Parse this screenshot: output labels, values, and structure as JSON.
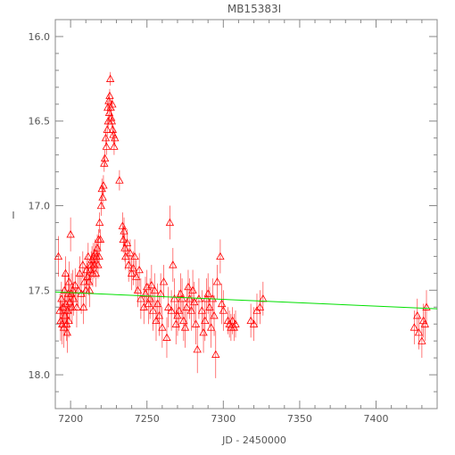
{
  "chart_data": {
    "type": "scatter",
    "title": "MB15383I",
    "xlabel": "JD - 2450000",
    "ylabel": "I",
    "xlim": [
      7190,
      7440
    ],
    "ylim": [
      18.2,
      15.9
    ],
    "y_inverted": true,
    "x_ticks": [
      7200,
      7250,
      7300,
      7350,
      7400
    ],
    "y_ticks": [
      16.0,
      16.5,
      17.0,
      17.5,
      18.0
    ],
    "x_tick_labels": [
      "7200",
      "7250",
      "7300",
      "7350",
      "7400"
    ],
    "y_tick_labels": [
      "16.0",
      "16.5",
      "17.0",
      "17.5",
      "18.0"
    ],
    "grid": false,
    "marker": "open-triangle",
    "series_color": "#ff0000",
    "baseline": {
      "color": "#00e000",
      "x": [
        7190,
        7440
      ],
      "y": [
        17.51,
        17.61
      ]
    },
    "points": [
      [
        7192,
        17.3,
        0.12
      ],
      [
        7193,
        17.62,
        0.1
      ],
      [
        7193.5,
        17.68,
        0.12
      ],
      [
        7194,
        17.55,
        0.1
      ],
      [
        7194.5,
        17.7,
        0.12
      ],
      [
        7195,
        17.6,
        0.1
      ],
      [
        7195.5,
        17.72,
        0.12
      ],
      [
        7196,
        17.5,
        0.1
      ],
      [
        7196.3,
        17.65,
        0.12
      ],
      [
        7196.7,
        17.4,
        0.1
      ],
      [
        7197,
        17.58,
        0.12
      ],
      [
        7197.4,
        17.7,
        0.1
      ],
      [
        7197.8,
        17.75,
        0.12
      ],
      [
        7198,
        17.62,
        0.1
      ],
      [
        7198.4,
        17.52,
        0.12
      ],
      [
        7198.8,
        17.68,
        0.1
      ],
      [
        7199,
        17.45,
        0.12
      ],
      [
        7199.5,
        17.57,
        0.1
      ],
      [
        7200,
        17.17,
        0.1
      ],
      [
        7200.5,
        17.52,
        0.12
      ],
      [
        7201,
        17.6,
        0.1
      ],
      [
        7201.5,
        17.5,
        0.12
      ],
      [
        7202,
        17.55,
        0.1
      ],
      [
        7203,
        17.47,
        0.1
      ],
      [
        7204,
        17.6,
        0.12
      ],
      [
        7205,
        17.5,
        0.1
      ],
      [
        7206,
        17.4,
        0.1
      ],
      [
        7207,
        17.52,
        0.12
      ],
      [
        7208,
        17.35,
        0.08
      ],
      [
        7208.5,
        17.6,
        0.1
      ],
      [
        7209,
        17.45,
        0.08
      ],
      [
        7210,
        17.5,
        0.1
      ],
      [
        7210.5,
        17.38,
        0.08
      ],
      [
        7211,
        17.42,
        0.08
      ],
      [
        7211.5,
        17.3,
        0.08
      ],
      [
        7212,
        17.45,
        0.08
      ],
      [
        7212.5,
        17.5,
        0.1
      ],
      [
        7213,
        17.38,
        0.08
      ],
      [
        7213.5,
        17.35,
        0.08
      ],
      [
        7214,
        17.32,
        0.08
      ],
      [
        7214.5,
        17.4,
        0.08
      ],
      [
        7215,
        17.3,
        0.08
      ],
      [
        7215.5,
        17.35,
        0.08
      ],
      [
        7216,
        17.28,
        0.08
      ],
      [
        7216.5,
        17.4,
        0.08
      ],
      [
        7217,
        17.3,
        0.08
      ],
      [
        7217.5,
        17.25,
        0.08
      ],
      [
        7218,
        17.35,
        0.08
      ],
      [
        7218.3,
        17.2,
        0.06
      ],
      [
        7218.7,
        17.3,
        0.06
      ],
      [
        7219,
        17.1,
        0.06
      ],
      [
        7219.5,
        17.2,
        0.06
      ],
      [
        7220,
        17.0,
        0.06
      ],
      [
        7220.5,
        16.9,
        0.06
      ],
      [
        7221,
        16.95,
        0.06
      ],
      [
        7221.5,
        16.88,
        0.06
      ],
      [
        7222,
        16.75,
        0.05
      ],
      [
        7222.5,
        16.72,
        0.05
      ],
      [
        7223,
        16.6,
        0.05
      ],
      [
        7223.5,
        16.65,
        0.05
      ],
      [
        7224,
        16.55,
        0.05
      ],
      [
        7224.3,
        16.42,
        0.04
      ],
      [
        7224.6,
        16.5,
        0.04
      ],
      [
        7225,
        16.38,
        0.04
      ],
      [
        7225.3,
        16.45,
        0.04
      ],
      [
        7225.6,
        16.35,
        0.04
      ],
      [
        7226,
        16.25,
        0.04
      ],
      [
        7226.3,
        16.42,
        0.04
      ],
      [
        7226.6,
        16.48,
        0.04
      ],
      [
        7227,
        16.5,
        0.04
      ],
      [
        7227.3,
        16.4,
        0.04
      ],
      [
        7227.6,
        16.55,
        0.04
      ],
      [
        7228,
        16.58,
        0.05
      ],
      [
        7228.5,
        16.65,
        0.05
      ],
      [
        7229,
        16.6,
        0.05
      ],
      [
        7232,
        16.85,
        0.06
      ],
      [
        7234,
        17.12,
        0.08
      ],
      [
        7234.5,
        17.2,
        0.08
      ],
      [
        7235,
        17.15,
        0.08
      ],
      [
        7235.5,
        17.25,
        0.08
      ],
      [
        7236,
        17.3,
        0.08
      ],
      [
        7237,
        17.22,
        0.08
      ],
      [
        7238,
        17.35,
        0.1
      ],
      [
        7239,
        17.28,
        0.08
      ],
      [
        7240,
        17.4,
        0.1
      ],
      [
        7241,
        17.37,
        0.1
      ],
      [
        7242,
        17.3,
        0.1
      ],
      [
        7243,
        17.42,
        0.1
      ],
      [
        7244,
        17.5,
        0.1
      ],
      [
        7245,
        17.38,
        0.1
      ],
      [
        7246,
        17.55,
        0.12
      ],
      [
        7248,
        17.6,
        0.1
      ],
      [
        7249,
        17.52,
        0.1
      ],
      [
        7250,
        17.48,
        0.1
      ],
      [
        7251,
        17.58,
        0.12
      ],
      [
        7252,
        17.55,
        0.12
      ],
      [
        7253,
        17.47,
        0.12
      ],
      [
        7254,
        17.62,
        0.12
      ],
      [
        7255,
        17.5,
        0.1
      ],
      [
        7256,
        17.68,
        0.12
      ],
      [
        7257,
        17.58,
        0.12
      ],
      [
        7258,
        17.65,
        0.12
      ],
      [
        7259,
        17.52,
        0.12
      ],
      [
        7260,
        17.72,
        0.12
      ],
      [
        7261,
        17.45,
        0.1
      ],
      [
        7263,
        17.78,
        0.12
      ],
      [
        7264,
        17.6,
        0.12
      ],
      [
        7265,
        17.1,
        0.1
      ],
      [
        7266,
        17.62,
        0.12
      ],
      [
        7267,
        17.35,
        0.1
      ],
      [
        7268,
        17.55,
        0.12
      ],
      [
        7269,
        17.7,
        0.12
      ],
      [
        7270,
        17.65,
        0.12
      ],
      [
        7271,
        17.62,
        0.12
      ],
      [
        7272,
        17.52,
        0.12
      ],
      [
        7273,
        17.55,
        0.12
      ],
      [
        7274,
        17.68,
        0.12
      ],
      [
        7275,
        17.72,
        0.12
      ],
      [
        7276,
        17.6,
        0.12
      ],
      [
        7277,
        17.48,
        0.1
      ],
      [
        7278,
        17.55,
        0.12
      ],
      [
        7279,
        17.62,
        0.12
      ],
      [
        7280,
        17.5,
        0.12
      ],
      [
        7281,
        17.57,
        0.12
      ],
      [
        7282,
        17.7,
        0.12
      ],
      [
        7283,
        17.85,
        0.14
      ],
      [
        7284,
        17.55,
        0.12
      ],
      [
        7286,
        17.62,
        0.12
      ],
      [
        7287,
        17.75,
        0.12
      ],
      [
        7288,
        17.68,
        0.12
      ],
      [
        7289,
        17.55,
        0.12
      ],
      [
        7290,
        17.52,
        0.12
      ],
      [
        7291,
        17.6,
        0.12
      ],
      [
        7292,
        17.72,
        0.12
      ],
      [
        7293,
        17.55,
        0.12
      ],
      [
        7294,
        17.65,
        0.12
      ],
      [
        7295,
        17.88,
        0.14
      ],
      [
        7296,
        17.45,
        0.1
      ],
      [
        7298,
        17.3,
        0.1
      ],
      [
        7299,
        17.58,
        0.12
      ],
      [
        7300,
        17.62,
        0.12
      ],
      [
        7303,
        17.68,
        0.08
      ],
      [
        7304,
        17.7,
        0.08
      ],
      [
        7305,
        17.72,
        0.08
      ],
      [
        7306,
        17.68,
        0.08
      ],
      [
        7307,
        17.72,
        0.08
      ],
      [
        7308,
        17.7,
        0.08
      ],
      [
        7318,
        17.68,
        0.1
      ],
      [
        7320,
        17.7,
        0.1
      ],
      [
        7322,
        17.62,
        0.1
      ],
      [
        7324,
        17.6,
        0.1
      ],
      [
        7326,
        17.55,
        0.1
      ],
      [
        7425,
        17.72,
        0.1
      ],
      [
        7427,
        17.65,
        0.1
      ],
      [
        7428,
        17.75,
        0.1
      ],
      [
        7430,
        17.8,
        0.1
      ],
      [
        7431,
        17.68,
        0.1
      ],
      [
        7432,
        17.7,
        0.1
      ],
      [
        7433,
        17.6,
        0.1
      ]
    ]
  }
}
